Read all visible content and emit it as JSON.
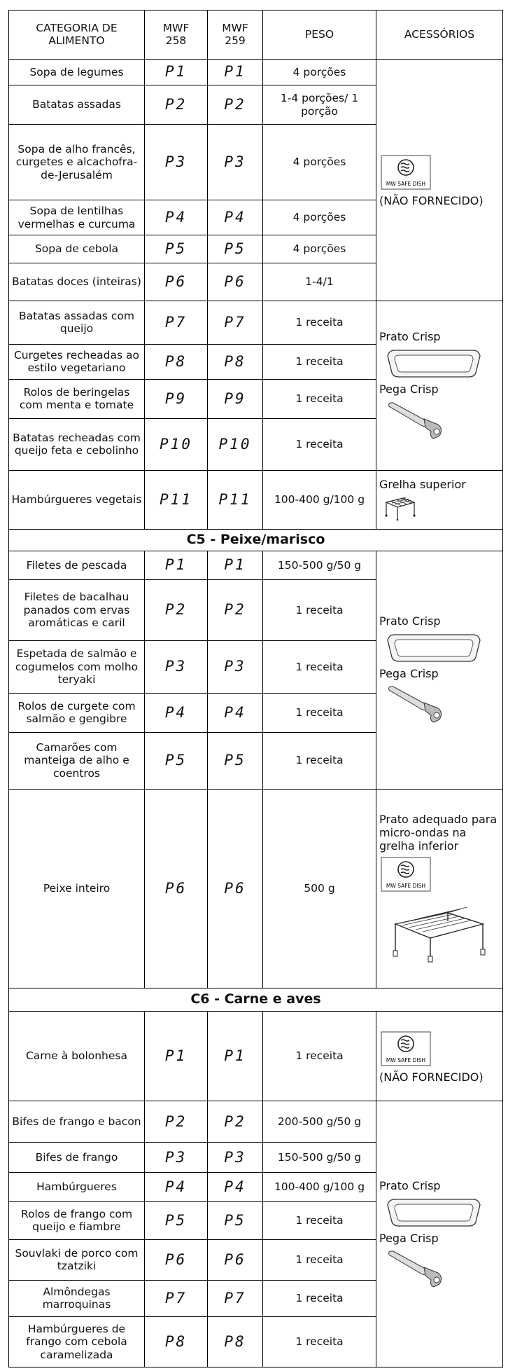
{
  "header": [
    "CATEGORIA DE ALIMENTO",
    "MWF 258",
    "MWF 259",
    "PESO",
    "ACESSÓRIOS"
  ],
  "sections": [
    {
      "rows": [
        [
          "Sopa de legumes",
          "P1",
          "P1",
          "4 porções"
        ],
        [
          "Batatas assadas",
          "P2",
          "P2",
          "1-4 porções/ 1 porção"
        ],
        [
          "Sopa de alho francês, curgetes e alcachofra-de-Jerusalém",
          "P3",
          "P3",
          "4 porções"
        ],
        [
          "Sopa de lentilhas vermelhas e curcuma",
          "P4",
          "P4",
          "4 porções"
        ],
        [
          "Sopa de cebola",
          "P5",
          "P5",
          "4 porções"
        ],
        [
          "Batatas doces (inteiras)",
          "P6",
          "P6",
          "1-4/1"
        ],
        [
          "Batatas assadas com queijo",
          "P7",
          "P7",
          "1 receita"
        ],
        [
          "Curgetes recheadas ao estilo vegetariano",
          "P8",
          "P8",
          "1 receita"
        ],
        [
          "Rolos de beringelas com menta e tomate",
          "P9",
          "P9",
          "1 receita"
        ],
        [
          "Batatas recheadas com queijo feta e cebolinho",
          "P10",
          "P10",
          "1 receita"
        ],
        [
          "Hambúrgueres vegetais",
          "P11",
          "P11",
          "100-400 g/100 g"
        ]
      ],
      "accessories": [
        [
          "MW SAFE DISH",
          "(NÃO FORNECIDO)"
        ],
        [
          "Prato Crisp",
          "Pega Crisp"
        ],
        [
          "Grelha superior"
        ]
      ]
    },
    {
      "title": "C5 - Peixe/marisco",
      "rows": [
        [
          "Filetes de pescada",
          "P1",
          "P1",
          "150-500 g/50 g"
        ],
        [
          "Filetes de bacalhau panados com ervas aromáticas e caril",
          "P2",
          "P2",
          "1 receita"
        ],
        [
          "Espetada de salmão e cogumelos com molho teryaki",
          "P3",
          "P3",
          "1 receita"
        ],
        [
          "Rolos de curgete com salmão e gengibre",
          "P4",
          "P4",
          "1 receita"
        ],
        [
          "Camarões com manteiga de alho e coentros",
          "P5",
          "P5",
          "1 receita"
        ],
        [
          "Peixe inteiro",
          "P6",
          "P6",
          "500 g"
        ]
      ],
      "accessories": [
        [
          "Prato Crisp",
          "Pega Crisp"
        ],
        [
          "Prato adequado para micro-ondas na grelha inferior",
          "MW SAFE DISH"
        ]
      ]
    },
    {
      "title": "C6 - Carne e aves",
      "rows": [
        [
          "Carne à bolonhesa",
          "P1",
          "P1",
          "1 receita"
        ],
        [
          "Bifes de frango e bacon",
          "P2",
          "P2",
          "200-500 g/50 g"
        ],
        [
          "Bifes de frango",
          "P3",
          "P3",
          "150-500 g/50 g"
        ],
        [
          "Hambúrgueres",
          "P4",
          "P4",
          "100-400 g/100 g"
        ],
        [
          "Rolos de frango com queijo e fiambre",
          "P5",
          "P5",
          "1 receita"
        ],
        [
          "Souvlaki de porco com tzatziki",
          "P6",
          "P6",
          "1 receita"
        ],
        [
          "Almôndegas marroquinas",
          "P7",
          "P7",
          "1 receita"
        ],
        [
          "Hambúrgueres de frango com cebola caramelizada",
          "P8",
          "P8",
          "1 receita"
        ]
      ],
      "accessories": [
        [
          "MW SAFE DISH",
          "(NÃO FORNECIDO)"
        ],
        [
          "Prato Crisp",
          "Pega Crisp"
        ]
      ]
    }
  ]
}
